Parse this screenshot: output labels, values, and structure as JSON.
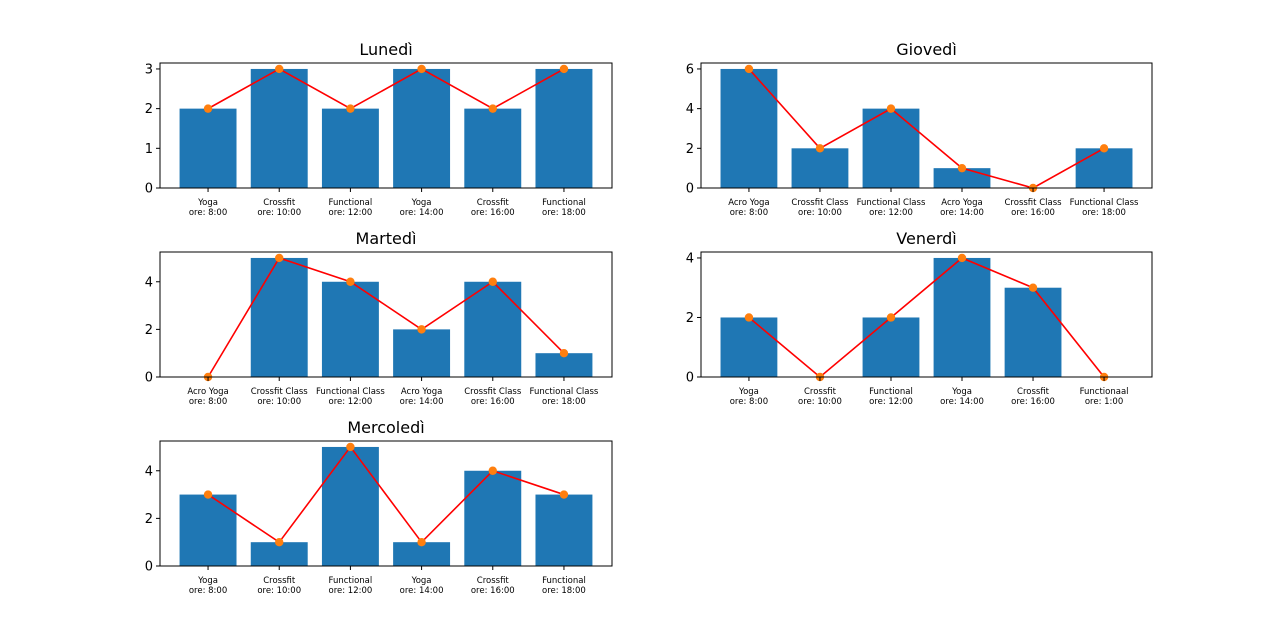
{
  "colors": {
    "bar": "#1f77b4",
    "line": "#ff0000",
    "marker": "#ff7f0e",
    "frame": "#000000"
  },
  "chart_data": [
    {
      "type": "bar",
      "title": "Lunedì",
      "categories": [
        "Yoga\nore: 8:00",
        "Crossfit\nore: 10:00",
        "Functional\nore: 12:00",
        "Yoga\nore: 14:00",
        "Crossfit\nore: 16:00",
        "Functional\nore: 18:00"
      ],
      "values": [
        2,
        3,
        2,
        3,
        2,
        3
      ],
      "overlay": "line-with-markers",
      "ylim": [
        0,
        3.15
      ],
      "yticks": [
        0,
        1,
        2,
        3
      ]
    },
    {
      "type": "bar",
      "title": "Giovedì",
      "categories": [
        "Acro Yoga\nore: 8:00",
        "Crossfit Class\nore: 10:00",
        "Functional Class\nore: 12:00",
        "Acro Yoga\nore: 14:00",
        "Crossfit Class\nore: 16:00",
        "Functional Class\nore: 18:00"
      ],
      "values": [
        6,
        2,
        4,
        1,
        0,
        2
      ],
      "overlay": "line-with-markers",
      "ylim": [
        0,
        6.3
      ],
      "yticks": [
        0,
        2,
        4,
        6
      ]
    },
    {
      "type": "bar",
      "title": "Martedì",
      "categories": [
        "Acro Yoga\nore: 8:00",
        "Crossfit Class\nore: 10:00",
        "Functional Class\nore: 12:00",
        "Acro Yoga\nore: 14:00",
        "Crossfit Class\nore: 16:00",
        "Functional Class\nore: 18:00"
      ],
      "values": [
        0,
        5,
        4,
        2,
        4,
        1
      ],
      "overlay": "line-with-markers",
      "ylim": [
        0,
        5.25
      ],
      "yticks": [
        0,
        2,
        4
      ]
    },
    {
      "type": "bar",
      "title": "Venerdì",
      "categories": [
        "Yoga\nore: 8:00",
        "Crossfit\nore: 10:00",
        "Functional\nore: 12:00",
        "Yoga\nore: 14:00",
        "Crossfit\nore: 16:00",
        "Functionaal\nore: 1:00"
      ],
      "values": [
        2,
        0,
        2,
        4,
        3,
        0
      ],
      "overlay": "line-with-markers",
      "ylim": [
        0,
        4.2
      ],
      "yticks": [
        0,
        2,
        4
      ]
    },
    {
      "type": "bar",
      "title": "Mercoledì",
      "categories": [
        "Yoga\nore: 8:00",
        "Crossfit\nore: 10:00",
        "Functional\nore: 12:00",
        "Yoga\nore: 14:00",
        "Crossfit\nore: 16:00",
        "Functional\nore: 18:00"
      ],
      "values": [
        3,
        1,
        5,
        1,
        4,
        3
      ],
      "overlay": "line-with-markers",
      "ylim": [
        0,
        5.25
      ],
      "yticks": [
        0,
        2,
        4
      ]
    }
  ]
}
